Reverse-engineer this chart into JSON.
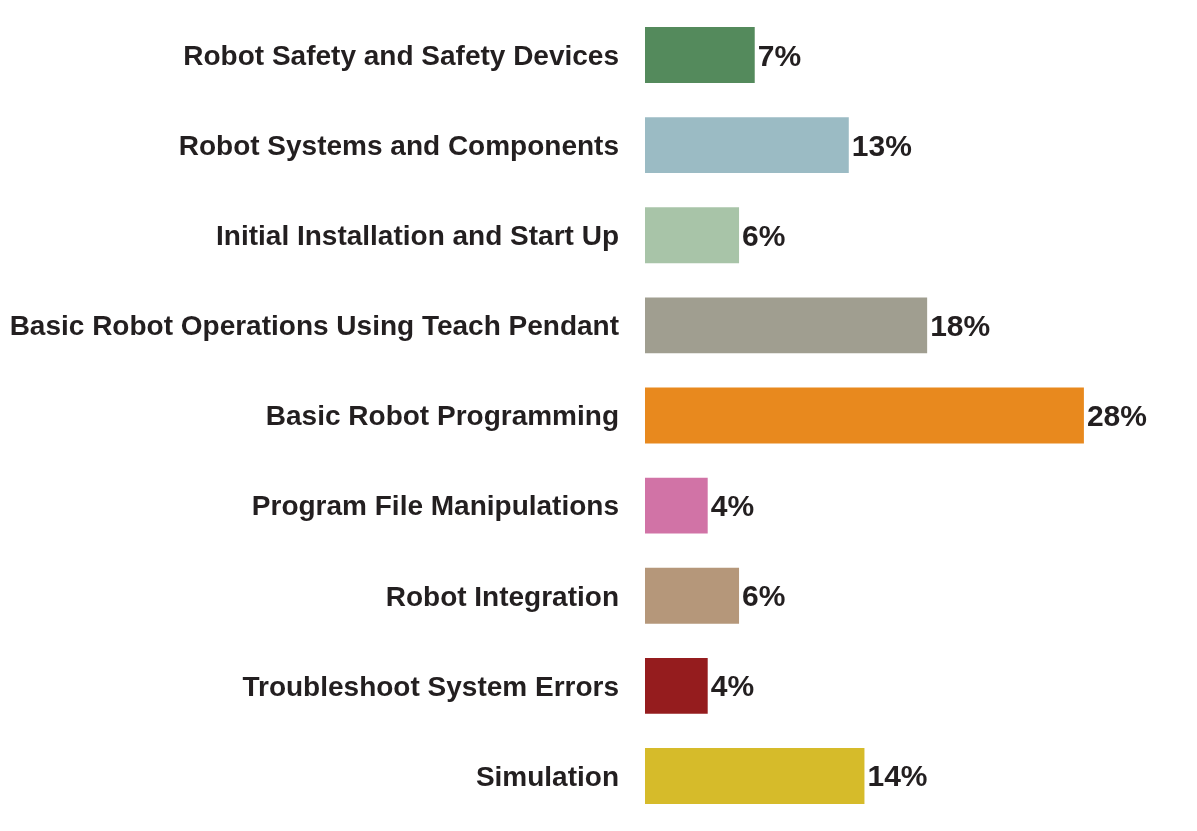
{
  "chart_data": {
    "type": "bar",
    "orientation": "horizontal",
    "categories": [
      "Robot Safety and Safety Devices",
      "Robot Systems and Components",
      "Initial Installation and Start Up",
      "Basic Robot Operations Using Teach Pendant",
      "Basic Robot Programming",
      "Program File Manipulations",
      "Robot Integration",
      "Troubleshoot System Errors",
      "Simulation"
    ],
    "values": [
      7,
      13,
      6,
      18,
      28,
      4,
      6,
      4,
      14
    ],
    "value_labels": [
      "7%",
      "13%",
      "6%",
      "18%",
      "28%",
      "4%",
      "6%",
      "4%",
      "14%"
    ],
    "colors": [
      "#548a5c",
      "#9bbbc4",
      "#a8c4a8",
      "#a09e90",
      "#e8891e",
      "#d173a6",
      "#b5977a",
      "#951c1e",
      "#d6bb2a"
    ],
    "legend": false
  }
}
